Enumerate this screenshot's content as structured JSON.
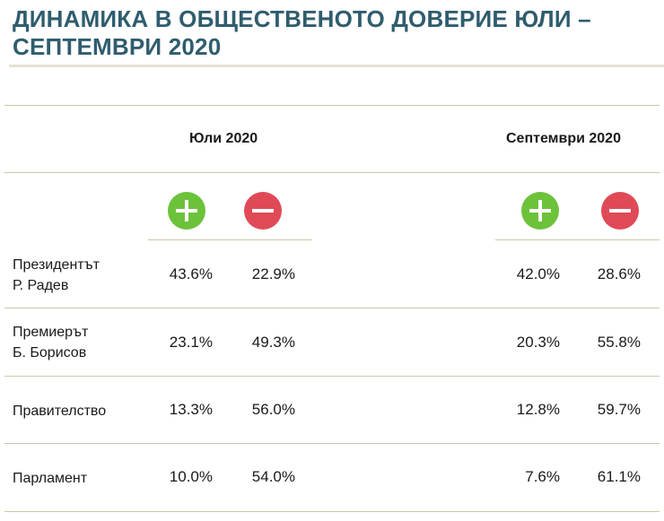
{
  "title": "ДИНАМИКА В ОБЩЕСТВЕНОТО ДОВЕРИЕ ЮЛИ – СЕПТЕМВРИ 2020",
  "columns": {
    "july": "Юли 2020",
    "september": "Септември 2020"
  },
  "icons": {
    "positive": "plus-icon",
    "negative": "minus-icon",
    "positive_color": "#6cc23a",
    "negative_color": "#e04a57"
  },
  "rows": [
    {
      "label_line1": "Президентът",
      "label_line2": "Р. Радев",
      "jul_pos": "43.6%",
      "jul_neg": "22.9%",
      "sep_pos": "42.0%",
      "sep_neg": "28.6%"
    },
    {
      "label_line1": "Премиерът",
      "label_line2": "Б. Борисов",
      "jul_pos": "23.1%",
      "jul_neg": "49.3%",
      "sep_pos": "20.3%",
      "sep_neg": "55.8%"
    },
    {
      "label_line1": "Правителство",
      "label_line2": "",
      "jul_pos": "13.3%",
      "jul_neg": "56.0%",
      "sep_pos": "12.8%",
      "sep_neg": "59.7%"
    },
    {
      "label_line1": "Парламент",
      "label_line2": "",
      "jul_pos": "10.0%",
      "jul_neg": "54.0%",
      "sep_pos": "7.6%",
      "sep_neg": "61.1%"
    }
  ]
}
